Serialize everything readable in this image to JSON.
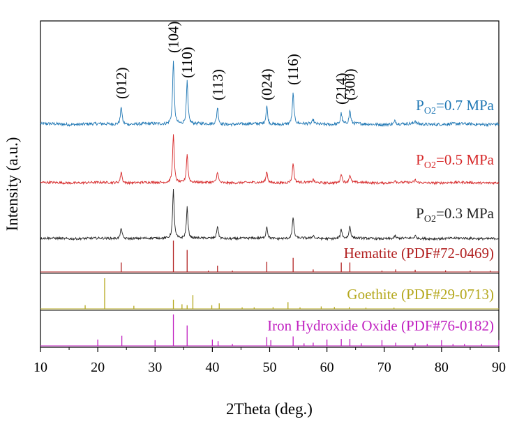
{
  "chart_data": {
    "type": "line",
    "title": "",
    "xlabel": "2Theta (deg.)",
    "ylabel": "Intensity (a.u.)",
    "xlim": [
      10,
      90
    ],
    "xticks": [
      10,
      20,
      30,
      40,
      50,
      60,
      70,
      80,
      90
    ],
    "grid": false,
    "miller_indices": [
      {
        "label": "(012)",
        "x": 24.1
      },
      {
        "label": "(104)",
        "x": 33.2
      },
      {
        "label": "(110)",
        "x": 35.6
      },
      {
        "label": "(113)",
        "x": 40.9
      },
      {
        "label": "(024)",
        "x": 49.5
      },
      {
        "label": "(116)",
        "x": 54.1
      },
      {
        "label": "(214)",
        "x": 62.5
      },
      {
        "label": "(300)",
        "x": 64.0
      }
    ],
    "series": [
      {
        "name": "PO2=0.7 MPa",
        "label_main": "P",
        "label_sub": "O2",
        "label_rest": "=0.7 MPa",
        "color": "#1f77b4",
        "peaks": [
          {
            "x": 24.1,
            "h": 0.27
          },
          {
            "x": 33.2,
            "h": 0.95
          },
          {
            "x": 35.6,
            "h": 0.62
          },
          {
            "x": 40.9,
            "h": 0.25
          },
          {
            "x": 49.5,
            "h": 0.27
          },
          {
            "x": 54.1,
            "h": 0.45
          },
          {
            "x": 57.6,
            "h": 0.06
          },
          {
            "x": 62.5,
            "h": 0.16
          },
          {
            "x": 64.0,
            "h": 0.2
          },
          {
            "x": 71.9,
            "h": 0.05
          },
          {
            "x": 75.4,
            "h": 0.05
          }
        ]
      },
      {
        "name": "PO2=0.5 MPa",
        "label_main": "P",
        "label_sub": "O2",
        "label_rest": "=0.5 MPa",
        "color": "#d62728",
        "peaks": [
          {
            "x": 24.1,
            "h": 0.22
          },
          {
            "x": 33.2,
            "h": 0.95
          },
          {
            "x": 35.6,
            "h": 0.55
          },
          {
            "x": 40.9,
            "h": 0.22
          },
          {
            "x": 49.5,
            "h": 0.22
          },
          {
            "x": 54.1,
            "h": 0.38
          },
          {
            "x": 57.6,
            "h": 0.06
          },
          {
            "x": 62.5,
            "h": 0.18
          },
          {
            "x": 64.0,
            "h": 0.15
          },
          {
            "x": 71.9,
            "h": 0.05
          },
          {
            "x": 75.4,
            "h": 0.05
          }
        ]
      },
      {
        "name": "PO2=0.3 MPa",
        "label_main": "P",
        "label_sub": "O2",
        "label_rest": "=0.3 MPa",
        "color": "#222222",
        "peaks": [
          {
            "x": 24.1,
            "h": 0.22
          },
          {
            "x": 33.2,
            "h": 0.95
          },
          {
            "x": 35.6,
            "h": 0.6
          },
          {
            "x": 40.9,
            "h": 0.25
          },
          {
            "x": 49.5,
            "h": 0.24
          },
          {
            "x": 54.1,
            "h": 0.42
          },
          {
            "x": 57.6,
            "h": 0.06
          },
          {
            "x": 62.5,
            "h": 0.18
          },
          {
            "x": 64.0,
            "h": 0.24
          },
          {
            "x": 71.9,
            "h": 0.05
          },
          {
            "x": 75.4,
            "h": 0.05
          }
        ]
      }
    ],
    "references": [
      {
        "name": "Hematite (PDF#72-0469)",
        "color": "#b22222",
        "lines": [
          {
            "x": 24.1,
            "h": 0.3
          },
          {
            "x": 33.2,
            "h": 1.0
          },
          {
            "x": 35.6,
            "h": 0.7
          },
          {
            "x": 39.3,
            "h": 0.04
          },
          {
            "x": 40.9,
            "h": 0.2
          },
          {
            "x": 43.5,
            "h": 0.04
          },
          {
            "x": 49.5,
            "h": 0.32
          },
          {
            "x": 54.1,
            "h": 0.45
          },
          {
            "x": 57.6,
            "h": 0.08
          },
          {
            "x": 62.5,
            "h": 0.3
          },
          {
            "x": 64.0,
            "h": 0.3
          },
          {
            "x": 69.6,
            "h": 0.04
          },
          {
            "x": 72.0,
            "h": 0.08
          },
          {
            "x": 75.4,
            "h": 0.07
          },
          {
            "x": 80.7,
            "h": 0.05
          },
          {
            "x": 85.0,
            "h": 0.04
          },
          {
            "x": 88.5,
            "h": 0.04
          }
        ]
      },
      {
        "name": "Goethite (PDF#29-0713)",
        "color": "#b5a81e",
        "lines": [
          {
            "x": 17.8,
            "h": 0.12
          },
          {
            "x": 21.2,
            "h": 1.0
          },
          {
            "x": 26.3,
            "h": 0.1
          },
          {
            "x": 33.2,
            "h": 0.3
          },
          {
            "x": 34.7,
            "h": 0.15
          },
          {
            "x": 35.6,
            "h": 0.12
          },
          {
            "x": 36.6,
            "h": 0.45
          },
          {
            "x": 39.9,
            "h": 0.12
          },
          {
            "x": 41.2,
            "h": 0.18
          },
          {
            "x": 45.2,
            "h": 0.05
          },
          {
            "x": 47.3,
            "h": 0.05
          },
          {
            "x": 50.6,
            "h": 0.06
          },
          {
            "x": 53.2,
            "h": 0.22
          },
          {
            "x": 55.3,
            "h": 0.05
          },
          {
            "x": 59.0,
            "h": 0.08
          },
          {
            "x": 61.3,
            "h": 0.06
          },
          {
            "x": 63.9,
            "h": 0.06
          },
          {
            "x": 66.8,
            "h": 0.04
          },
          {
            "x": 71.7,
            "h": 0.04
          }
        ]
      },
      {
        "name": "Iron Hydroxide Oxide (PDF#76-0182)",
        "color": "#c020c0",
        "lines": [
          {
            "x": 20.0,
            "h": 0.2
          },
          {
            "x": 24.2,
            "h": 0.32
          },
          {
            "x": 30.0,
            "h": 0.18
          },
          {
            "x": 33.2,
            "h": 1.0
          },
          {
            "x": 35.6,
            "h": 0.65
          },
          {
            "x": 40.0,
            "h": 0.2
          },
          {
            "x": 41.0,
            "h": 0.15
          },
          {
            "x": 43.5,
            "h": 0.06
          },
          {
            "x": 49.5,
            "h": 0.28
          },
          {
            "x": 50.2,
            "h": 0.18
          },
          {
            "x": 54.1,
            "h": 0.3
          },
          {
            "x": 56.0,
            "h": 0.08
          },
          {
            "x": 57.6,
            "h": 0.1
          },
          {
            "x": 60.0,
            "h": 0.2
          },
          {
            "x": 62.5,
            "h": 0.22
          },
          {
            "x": 64.0,
            "h": 0.22
          },
          {
            "x": 66.0,
            "h": 0.08
          },
          {
            "x": 69.6,
            "h": 0.18
          },
          {
            "x": 72.0,
            "h": 0.1
          },
          {
            "x": 75.4,
            "h": 0.08
          },
          {
            "x": 77.5,
            "h": 0.06
          },
          {
            "x": 80.0,
            "h": 0.18
          },
          {
            "x": 82.0,
            "h": 0.06
          },
          {
            "x": 84.0,
            "h": 0.06
          },
          {
            "x": 87.0,
            "h": 0.06
          },
          {
            "x": 90.0,
            "h": 0.18
          }
        ]
      }
    ]
  }
}
